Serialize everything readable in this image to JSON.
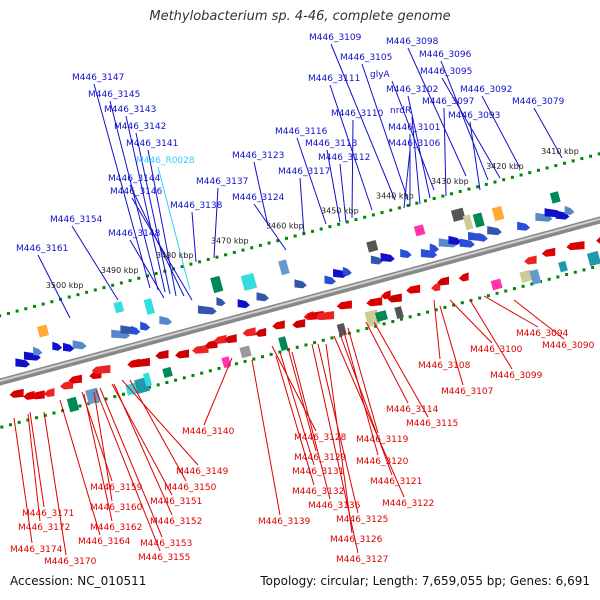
{
  "title": "Methylobacterium sp. 4-46, complete genome",
  "accession": "Accession: NC_010511",
  "topology": "Topology: circular; Length: 7,659,055 bp; Genes: 6,691",
  "colors": {
    "forward": "#1010cc",
    "reverse": "#dd0000",
    "rna": "#33ccff",
    "backbone": "#777777",
    "tick": "#008800"
  },
  "scale_labels": [
    "3410 kbp",
    "3420 kbp",
    "3430 kbp",
    "3440 kbp",
    "3450 kbp",
    "3460 kbp",
    "3470 kbp",
    "3480 kbp",
    "3490 kbp",
    "3500 kbp"
  ],
  "top_labels": [
    "M446_3109",
    "M446_3098",
    "M446_3105",
    "M446_3096",
    "M446_3111",
    "glyA",
    "M446_3095",
    "M446_3102",
    "M446_3092",
    "M446_3079",
    "M446_3097",
    "nrdR",
    "M446_3110",
    "M446_3093",
    "M446_3101",
    "M446_3116",
    "M446_3106",
    "M446_3113",
    "M446_3123",
    "M446_3112",
    "M446_3117",
    "M446_3137",
    "M446_3124",
    "M446_3138",
    "M446_3147",
    "M446_3145",
    "M446_3143",
    "M446_3142",
    "M446_3141",
    "M446_R0028",
    "M446_3144",
    "M446_3146",
    "M446_3154",
    "M446_3148",
    "M446_3161"
  ],
  "bottom_labels": [
    "M446_3094",
    "M446_3090",
    "M446_3100",
    "M446_3108",
    "M446_3099",
    "M446_3107",
    "M446_3114",
    "M446_3115",
    "M446_3119",
    "M446_3120",
    "M446_3121",
    "M446_3122",
    "M446_3128",
    "M446_3129",
    "M446_3131",
    "M446_3132",
    "M446_3136",
    "M446_3125",
    "M446_3126",
    "M446_3127",
    "M446_3139",
    "M446_3140",
    "M446_3149",
    "M446_3150",
    "M446_3151",
    "M446_3152",
    "M446_3153",
    "M446_3155",
    "M446_3159",
    "M446_3160",
    "M446_3162",
    "M446_3164",
    "M446_3171",
    "M446_3172",
    "M446_3174",
    "M446_3170"
  ]
}
